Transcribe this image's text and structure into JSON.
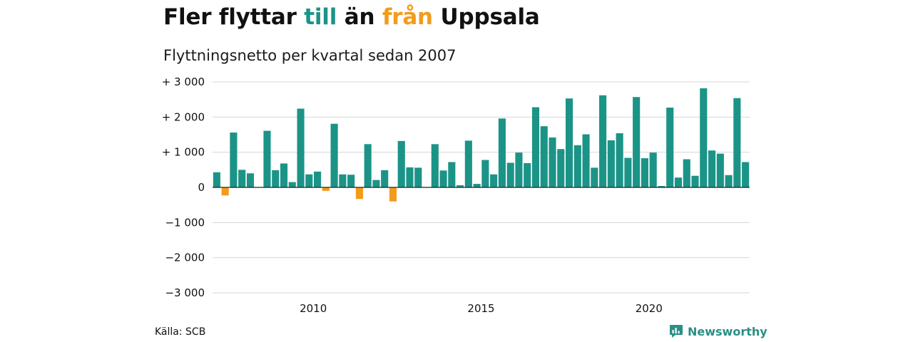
{
  "title": {
    "part1": "Fler flyttar ",
    "word_in": "till",
    "part2": " än ",
    "word_out": "från",
    "part3": " Uppsala"
  },
  "subtitle": "Flyttningsnetto per kvartal sedan 2007",
  "source": "Källa: SCB",
  "brand": {
    "name": "Newsworthy",
    "icon": "bar-chart-speech-icon"
  },
  "colors": {
    "positive": "#1b9487",
    "negative": "#f29c1c",
    "title_in": "#1b9487",
    "title_out": "#f29c1c"
  },
  "chart_data": {
    "type": "bar",
    "start_quarter": "2007 Q1",
    "ylim": [
      -3000,
      3000
    ],
    "yticks": [
      {
        "value": 3000,
        "label": "+ 3 000"
      },
      {
        "value": 2000,
        "label": "+ 2 000"
      },
      {
        "value": 1000,
        "label": "+ 1 000"
      },
      {
        "value": 0,
        "label": "0"
      },
      {
        "value": -1000,
        "label": "−1 000"
      },
      {
        "value": -2000,
        "label": "−2 000"
      },
      {
        "value": -3000,
        "label": "−3 000"
      }
    ],
    "xticks": [
      {
        "label": "2010",
        "quarter_index": 12
      },
      {
        "label": "2015",
        "quarter_index": 32
      },
      {
        "label": "2020",
        "quarter_index": 52
      }
    ],
    "values": [
      430,
      -230,
      1560,
      500,
      400,
      0,
      1610,
      490,
      680,
      150,
      2240,
      370,
      450,
      -100,
      1810,
      370,
      360,
      -330,
      1230,
      210,
      490,
      -400,
      1320,
      570,
      560,
      0,
      1230,
      480,
      720,
      60,
      1330,
      100,
      780,
      370,
      1960,
      700,
      990,
      690,
      2280,
      1740,
      1420,
      1090,
      2530,
      1200,
      1510,
      560,
      2620,
      1340,
      1540,
      840,
      2570,
      830,
      990,
      40,
      2270,
      280,
      800,
      330,
      2820,
      1050,
      960,
      350,
      2540,
      720
    ],
    "grid": true,
    "legend": "none"
  }
}
